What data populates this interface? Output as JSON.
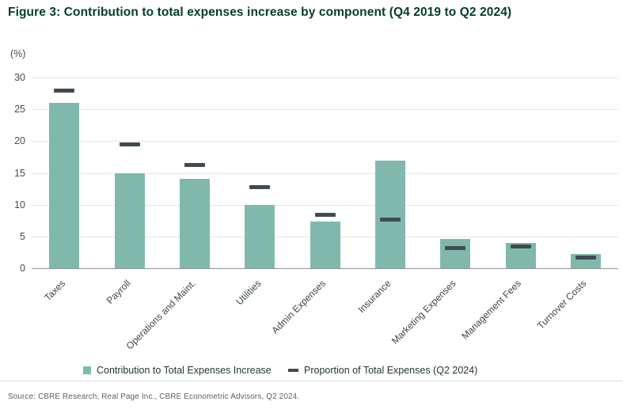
{
  "title": "Figure 3: Contribution to total expenses increase by component (Q4 2019 to Q2 2024)",
  "source": "Source: CBRE Research, Real Page Inc., CBRE Econometric Advisors, Q2 2024.",
  "legend": {
    "bar_label": "Contribution to Total Expenses Increase",
    "dash_label": "Proportion of Total Expenses (Q2 2024)"
  },
  "colors": {
    "title_text": "#003d2e",
    "bar": "#80b9ab",
    "dash": "#3f4b51",
    "gridline": "#e4e7e7",
    "zero_axis": "#8d9696",
    "tick_text": "#414e4d",
    "legend_text": "#243533",
    "source_text": "#55626b"
  },
  "chart_data": {
    "type": "bar",
    "title": "Figure 3: Contribution to total expenses increase by component (Q4 2019 to Q2 2024)",
    "unit_label": "(%)",
    "categories": [
      "Taxes",
      "Payroll",
      "Operations and Maint.",
      "Utilities",
      "Admin Expenses",
      "Insurance",
      "Marketing Expenses",
      "Management Fees",
      "Turnover Costs"
    ],
    "series": [
      {
        "name": "Contribution to Total Expenses Increase",
        "mark": "bar",
        "values": [
          26.0,
          14.9,
          14.1,
          9.9,
          7.4,
          16.9,
          4.6,
          4.0,
          2.2
        ]
      },
      {
        "name": "Proportion of Total Expenses (Q2 2024)",
        "mark": "dash",
        "values": [
          27.9,
          19.5,
          16.2,
          12.7,
          8.4,
          7.6,
          3.2,
          3.4,
          1.7
        ]
      }
    ],
    "ylim": [
      0,
      30
    ],
    "yticks": [
      0,
      5,
      10,
      15,
      20,
      25,
      30
    ],
    "grid": true,
    "legend_position": "bottom"
  }
}
